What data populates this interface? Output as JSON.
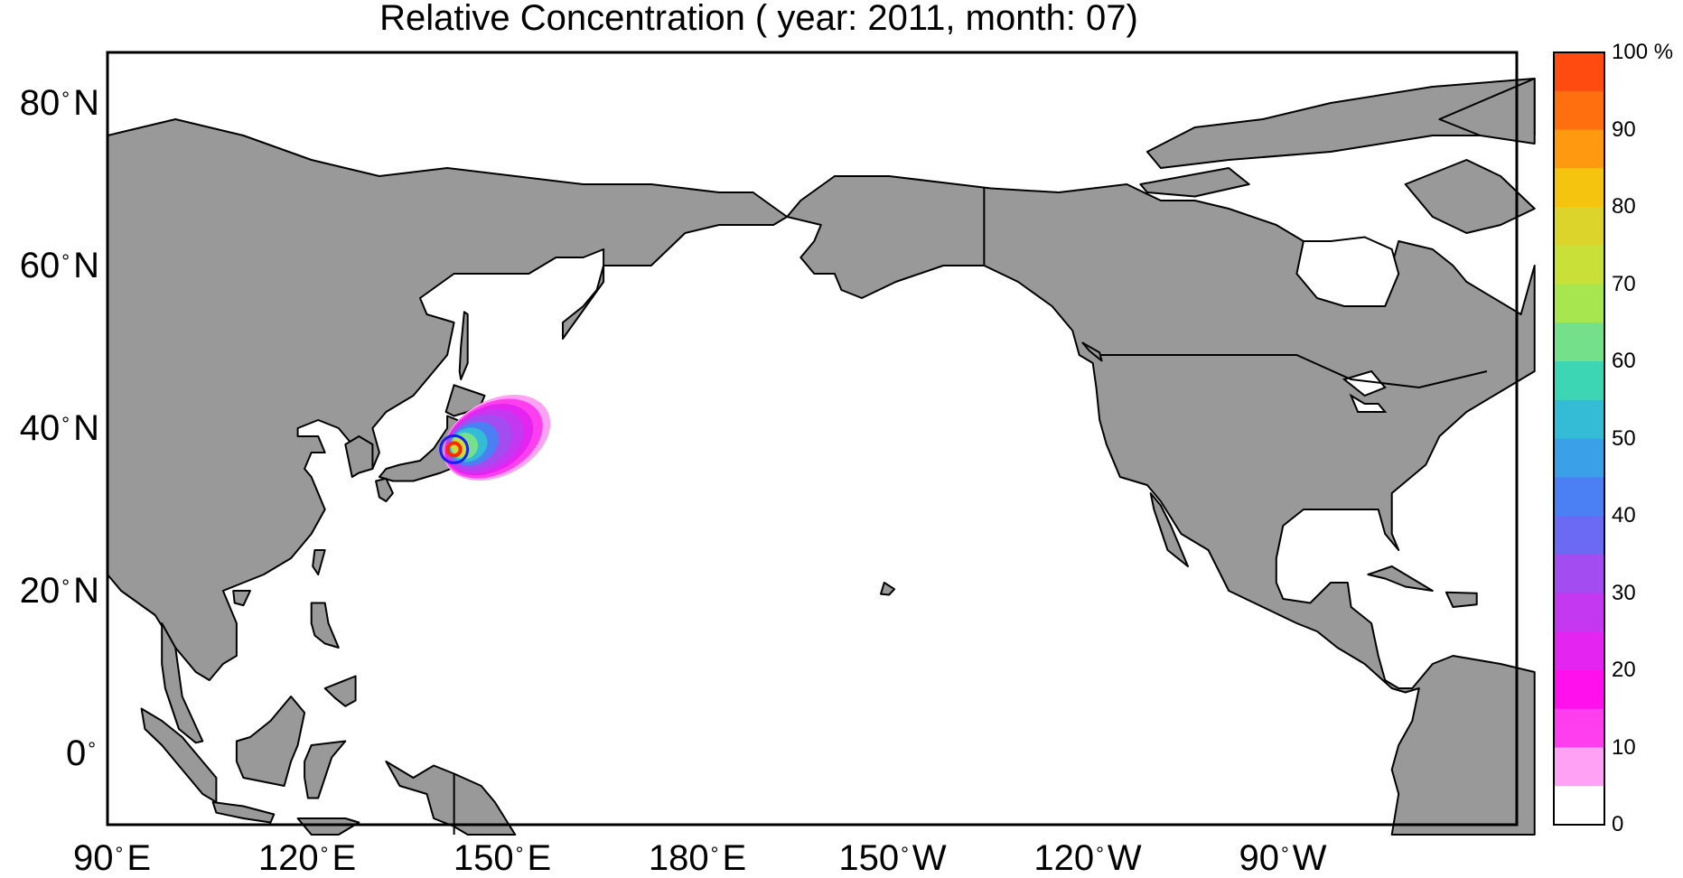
{
  "title": "Relative Concentration ( year: 2011, month: 07)",
  "lat_labels": [
    {
      "value": "80",
      "suffix": "N"
    },
    {
      "value": "60",
      "suffix": "N"
    },
    {
      "value": "40",
      "suffix": "N"
    },
    {
      "value": "20",
      "suffix": "N"
    },
    {
      "value": "0",
      "suffix": ""
    }
  ],
  "lon_labels": [
    {
      "value": "90",
      "suffix": "E"
    },
    {
      "value": "120",
      "suffix": "E"
    },
    {
      "value": "150",
      "suffix": "E"
    },
    {
      "value": "180",
      "suffix": "E"
    },
    {
      "value": "150",
      "suffix": "W"
    },
    {
      "value": "120",
      "suffix": "W"
    },
    {
      "value": "90",
      "suffix": "W"
    }
  ],
  "colorbar": {
    "labels": [
      "100 %",
      "90",
      "80",
      "70",
      "60",
      "50",
      "40",
      "30",
      "20",
      "10",
      "0"
    ],
    "colors_top_to_bottom": [
      "#ff4a10",
      "#ff6f10",
      "#ff9a10",
      "#f5c40e",
      "#dcd42a",
      "#c8e038",
      "#a8e650",
      "#74e08a",
      "#3cd6b4",
      "#34bcd6",
      "#3aa0e8",
      "#4a80f4",
      "#6a6af4",
      "#a24cf2",
      "#c438f2",
      "#e424f0",
      "#ff10ec",
      "#ff3ef0",
      "#ffa2f6",
      "#ffffff"
    ],
    "color_spacing_percent": 5,
    "labeled_step_percent": 10
  },
  "map": {
    "projection": "equirectangular, centered on Pacific",
    "extent_lon": "90E to ~60W",
    "extent_lat": "~-10 to 85N",
    "land_color": "#999999",
    "ocean_color": "#ffffff",
    "coastline_color": "#000000",
    "plume": {
      "lon": 141,
      "lat": 37.5,
      "peak_percent": 100,
      "extends_to_lon": 155
    },
    "source_marker": {
      "lon": 141,
      "lat": 37.4,
      "ring_color": "#1a1aff",
      "center_color": "#ff2a00"
    }
  }
}
